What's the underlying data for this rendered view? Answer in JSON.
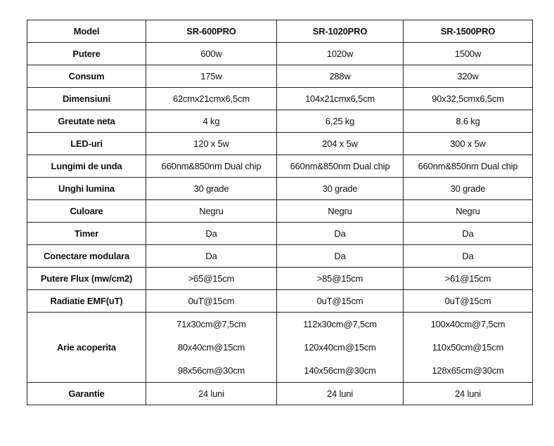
{
  "header": [
    "Model",
    "SR-600PRO",
    "SR-1020PRO",
    "SR-1500PRO"
  ],
  "rows": [
    {
      "label": "Putere",
      "values": [
        "600w",
        "1020w",
        "1500w"
      ]
    },
    {
      "label": "Consum",
      "values": [
        "175w",
        "288w",
        "320w"
      ]
    },
    {
      "label": "Dimensiuni",
      "values": [
        "62cmx21cmx6,5cm",
        "104x21cmx6,5cm",
        "90x32,5cmx6,5cm"
      ]
    },
    {
      "label": "Greutate neta",
      "values": [
        "4 kg",
        "6,25 kg",
        "8.6 kg"
      ]
    },
    {
      "label": "LED-uri",
      "values": [
        "120 x 5w",
        "204 x 5w",
        "300 x 5w"
      ]
    },
    {
      "label": "Lungimi de unda",
      "values": [
        "660nm&850nm Dual chip",
        "660nm&850nm Dual chip",
        "660nm&850nm Dual chip"
      ]
    },
    {
      "label": "Unghi lumina",
      "values": [
        "30 grade",
        "30 grade",
        "30 grade"
      ]
    },
    {
      "label": "Culoare",
      "values": [
        "Negru",
        "Negru",
        "Negru"
      ]
    },
    {
      "label": "Timer",
      "values": [
        "Da",
        "Da",
        "Da"
      ]
    },
    {
      "label": "Conectare modulara",
      "values": [
        "Da",
        "Da",
        "Da"
      ]
    },
    {
      "label": "Putere Flux (mw/cm2)",
      "values": [
        ">65@15cm",
        ">85@15cm",
        ">61@15cm"
      ]
    },
    {
      "label": "Radiatie EMF(uT)",
      "values": [
        "0uT@15cm",
        "0uT@15cm",
        "0uT@15cm"
      ]
    }
  ],
  "coverage": {
    "label": "Arie acoperita",
    "values": [
      [
        "71x30cm@7,5cm",
        "80x40cm@15cm",
        "98x56cm@30cm"
      ],
      [
        "112x30cm@7,5cm",
        "120x40cm@15cm",
        "140x56cm@30cm"
      ],
      [
        "100x40cm@7,5cm",
        "110x50cm@15cm",
        "128x65cm@30cm"
      ]
    ]
  },
  "warranty": {
    "label": "Garantie",
    "values": [
      "24 luni",
      "24 luni",
      "24 luni"
    ]
  }
}
